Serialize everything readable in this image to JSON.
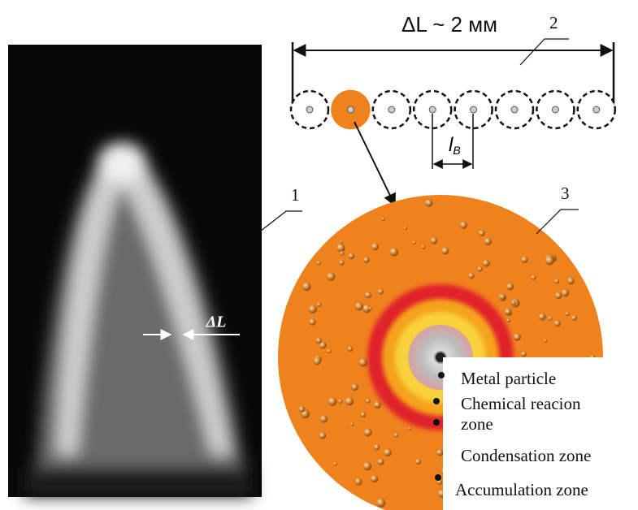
{
  "figure": {
    "scale_label": "ΔL ~ 2 мм",
    "callouts": [
      "1",
      "2",
      "3"
    ],
    "photo_width_label": "ΔL",
    "spacing_label": {
      "main": "l",
      "sub": "B"
    },
    "zones": [
      "Metal particle",
      "Chemical reacion",
      "zone",
      "Condensation zone",
      "Accumulation zone"
    ]
  }
}
